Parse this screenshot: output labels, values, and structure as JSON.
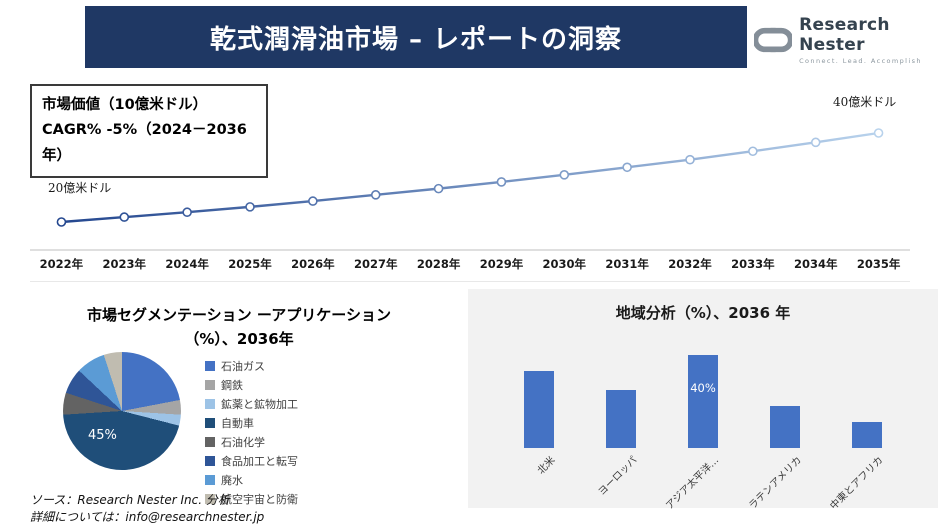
{
  "header": {
    "title": "乾式潤滑油市場 – レポートの洞察"
  },
  "logo": {
    "brand": "Research Nester",
    "tagline": "Connect. Lead. Accomplish"
  },
  "info_box": {
    "line1": "市場価値（10億米ドル）",
    "line2": "CAGR% -5%（2024－2036年）"
  },
  "footer": {
    "line1": "ソース：Research Nester Inc. 分析",
    "line2": "詳細については：info@researchnester.jp"
  },
  "colors": {
    "banner": "#1F3864",
    "bar": "#4472C4",
    "line_start": "#24478F",
    "line_end": "#B8D2EC",
    "panel_bg": "#F2F2F2"
  },
  "chart_data": [
    {
      "type": "line",
      "name": "market-value-trend",
      "title": "市場価値（10億米ドル）",
      "x": [
        "2022年",
        "2023年",
        "2024年",
        "2025年",
        "2026年",
        "2027年",
        "2028年",
        "2029年",
        "2030年",
        "2031年",
        "2032年",
        "2033年",
        "2034年",
        "2035年"
      ],
      "values": [
        20,
        21.1,
        22.2,
        23.4,
        24.7,
        26.1,
        27.5,
        29.0,
        30.6,
        32.3,
        34.0,
        35.9,
        37.9,
        40
      ],
      "start_label": "20億米ドル",
      "end_label": "40億米ドル",
      "ylim": [
        0,
        45
      ],
      "grid": false,
      "legend_position": "none"
    },
    {
      "type": "pie",
      "name": "market-segmentation-application",
      "title_line1": "市場セグメンテーション ーアプリケーション",
      "title_line2": "（%）、2036年",
      "labels": [
        "石油ガス",
        "鋼鉄",
        "鉱薬と鉱物加工",
        "自動車",
        "石油化学",
        "食品加工と転写",
        "廃水",
        "航空宇宙と防衛"
      ],
      "values": [
        22,
        4,
        3,
        45,
        6,
        7,
        8,
        5
      ],
      "colors": [
        "#4472C4",
        "#A5A5A5",
        "#9DC3E6",
        "#1F4E79",
        "#636363",
        "#2F5597",
        "#5B9BD5",
        "#C0BCB0"
      ],
      "data_label": {
        "text": "45%",
        "slice": "自動車"
      },
      "legend_position": "right"
    },
    {
      "type": "bar",
      "name": "regional-analysis",
      "title": "地域分析（%）、2036 年",
      "categories": [
        "北米",
        "ヨーロッパ",
        "アジア太平洋…",
        "ラテンアメリカ",
        "中東とアフリカ"
      ],
      "values": [
        33,
        25,
        40,
        18,
        11
      ],
      "ylim": [
        0,
        45
      ],
      "bar_color": "#4472C4",
      "data_label": {
        "text": "40%",
        "category": "アジア太平洋…"
      },
      "grid": false
    }
  ]
}
